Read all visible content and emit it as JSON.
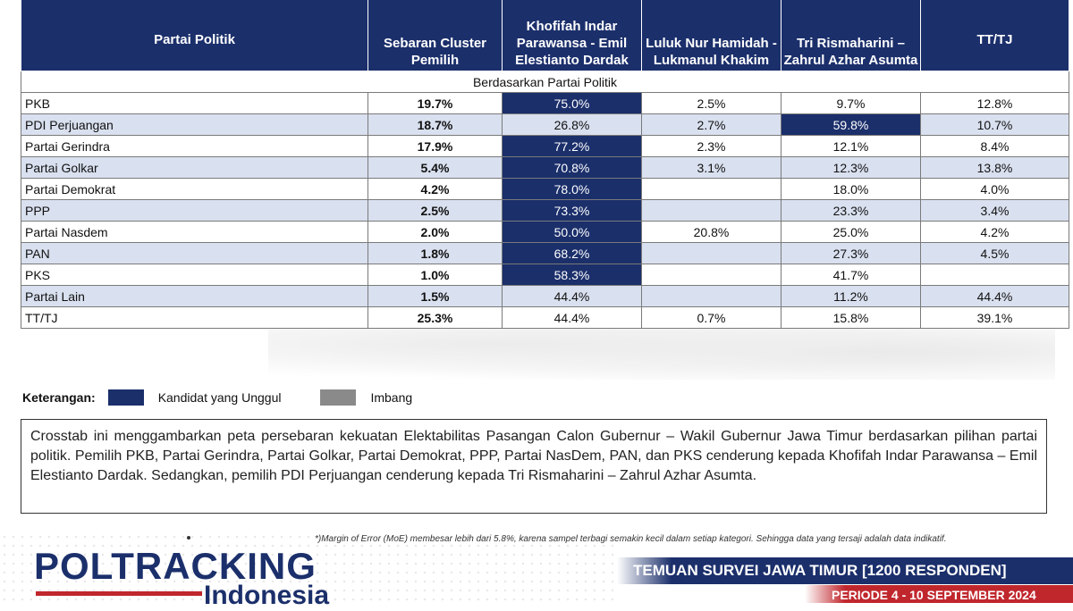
{
  "table": {
    "headers": [
      "Partai Politik",
      "Sebaran Cluster Pemilih",
      "Khofifah Indar Parawansa - Emil Elestianto Dardak",
      "Luluk Nur Hamidah - Lukmanul Khakim",
      "Tri Rismaharini – Zahrul Azhar Asumta",
      "TT/TJ"
    ],
    "section_label": "Berdasarkan Partai Politik",
    "rows": [
      {
        "party": "PKB",
        "spread": "19.7%",
        "khofifah": "75.0%",
        "luluk": "2.5%",
        "risma": "9.7%",
        "tttj": "12.8%",
        "win": "khofifah"
      },
      {
        "party": "PDI Perjuangan",
        "spread": "18.7%",
        "khofifah": "26.8%",
        "luluk": "2.7%",
        "risma": "59.8%",
        "tttj": "10.7%",
        "win": "risma"
      },
      {
        "party": "Partai Gerindra",
        "spread": "17.9%",
        "khofifah": "77.2%",
        "luluk": "2.3%",
        "risma": "12.1%",
        "tttj": "8.4%",
        "win": "khofifah"
      },
      {
        "party": "Partai Golkar",
        "spread": "5.4%",
        "khofifah": "70.8%",
        "luluk": "3.1%",
        "risma": "12.3%",
        "tttj": "13.8%",
        "win": "khofifah"
      },
      {
        "party": "Partai Demokrat",
        "spread": "4.2%",
        "khofifah": "78.0%",
        "luluk": "",
        "risma": "18.0%",
        "tttj": "4.0%",
        "win": "khofifah"
      },
      {
        "party": "PPP",
        "spread": "2.5%",
        "khofifah": "73.3%",
        "luluk": "",
        "risma": "23.3%",
        "tttj": "3.4%",
        "win": "khofifah"
      },
      {
        "party": "Partai Nasdem",
        "spread": "2.0%",
        "khofifah": "50.0%",
        "luluk": "20.8%",
        "risma": "25.0%",
        "tttj": "4.2%",
        "win": "khofifah"
      },
      {
        "party": "PAN",
        "spread": "1.8%",
        "khofifah": "68.2%",
        "luluk": "",
        "risma": "27.3%",
        "tttj": "4.5%",
        "win": "khofifah"
      },
      {
        "party": "PKS",
        "spread": "1.0%",
        "khofifah": "58.3%",
        "luluk": "",
        "risma": "41.7%",
        "tttj": "",
        "win": "khofifah"
      },
      {
        "party": "Partai Lain",
        "spread": "1.5%",
        "khofifah": "44.4%",
        "luluk": "",
        "risma": "11.2%",
        "tttj": "44.4%",
        "win": ""
      },
      {
        "party": "TT/TJ",
        "spread": "25.3%",
        "khofifah": "44.4%",
        "luluk": "0.7%",
        "risma": "15.8%",
        "tttj": "39.1%",
        "win": ""
      }
    ]
  },
  "colors": {
    "winner": "#1b2f6b",
    "tie": "#8a8a8a",
    "accent_red": "#c0272d"
  },
  "legend": {
    "title": "Keterangan:",
    "winner_label": "Kandidat yang Unggul",
    "tie_label": "Imbang"
  },
  "note": "Crosstab ini menggambarkan peta persebaran kekuatan Elektabilitas Pasangan Calon Gubernur – Wakil Gubernur Jawa Timur berdasarkan pilihan partai politik. Pemilih PKB, Partai Gerindra, Partai Golkar, Partai Demokrat, PPP, Partai NasDem, PAN, dan PKS cenderung kepada Khofifah Indar Parawansa – Emil Elestianto Dardak. Sedangkan, pemilih PDI Perjuangan cenderung kepada Tri Rismaharini – Zahrul Azhar Asumta.",
  "moe_note": "*)Margin of Error (MoE) membesar lebih dari 5.8%, karena sampel terbagi semakin kecil dalam setiap kategori. Sehingga  data yang tersaji adalah data indikatif.",
  "footer": {
    "logo_text": "POLTRACKING",
    "logo_sub": "Indonesia",
    "banner_title": "TEMUAN SURVEI JAWA TIMUR [1200 RESPONDEN]",
    "banner_period": "PERIODE 4 - 10 SEPTEMBER 2024"
  }
}
